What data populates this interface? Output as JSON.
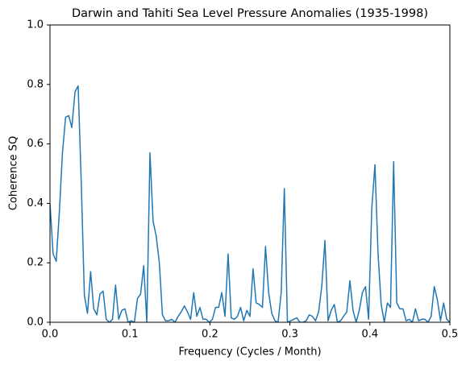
{
  "chart_data": {
    "type": "line",
    "title": "Darwin and Tahiti Sea Level Pressure Anomalies (1935-1998)",
    "x_label": "Frequency (Cycles / Month)",
    "y_label": "Coherence SQ",
    "color": "#1f77b4",
    "x": [
      0,
      0.0039,
      0.0078,
      0.0117,
      0.0156,
      0.0195,
      0.0234,
      0.0273,
      0.0313,
      0.0352,
      0.0391,
      0.043,
      0.0469,
      0.0508,
      0.0547,
      0.0586,
      0.0625,
      0.0664,
      0.0703,
      0.0742,
      0.0781,
      0.082,
      0.0859,
      0.0898,
      0.0938,
      0.0977,
      0.1016,
      0.1055,
      0.1094,
      0.1133,
      0.1172,
      0.1211,
      0.125,
      0.1289,
      0.1328,
      0.1367,
      0.1406,
      0.1445,
      0.1484,
      0.1523,
      0.1563,
      0.1602,
      0.1641,
      0.168,
      0.1719,
      0.1758,
      0.1797,
      0.1836,
      0.1875,
      0.1914,
      0.1953,
      0.1992,
      0.2031,
      0.207,
      0.2109,
      0.2148,
      0.2188,
      0.2227,
      0.2266,
      0.2305,
      0.2344,
      0.2383,
      0.2422,
      0.2461,
      0.25,
      0.2539,
      0.2578,
      0.2617,
      0.2656,
      0.2695,
      0.2734,
      0.2773,
      0.2813,
      0.2852,
      0.2891,
      0.293,
      0.2969,
      0.3008,
      0.3047,
      0.3086,
      0.3125,
      0.3164,
      0.3203,
      0.3242,
      0.3281,
      0.332,
      0.3359,
      0.3398,
      0.3438,
      0.3477,
      0.3516,
      0.3555,
      0.3594,
      0.3633,
      0.3672,
      0.3711,
      0.375,
      0.3789,
      0.3828,
      0.3867,
      0.3906,
      0.3945,
      0.3984,
      0.4023,
      0.4063,
      0.4102,
      0.4141,
      0.418,
      0.4219,
      0.4258,
      0.4297,
      0.4336,
      0.4375,
      0.4414,
      0.4453,
      0.4492,
      0.4531,
      0.457,
      0.4609,
      0.4648,
      0.4688,
      0.4727,
      0.4766,
      0.4805,
      0.4844,
      0.4883,
      0.4922,
      0.4961,
      0.5
    ],
    "values": [
      0.4,
      0.23,
      0.205,
      0.37,
      0.57,
      0.69,
      0.695,
      0.655,
      0.775,
      0.795,
      0.47,
      0.09,
      0.03,
      0.17,
      0.045,
      0.025,
      0.095,
      0.105,
      0.01,
      0.0,
      0.01,
      0.125,
      0.01,
      0.04,
      0.045,
      0.0,
      0.005,
      0.0,
      0.08,
      0.095,
      0.19,
      0.0,
      0.57,
      0.34,
      0.29,
      0.2,
      0.025,
      0.005,
      0.005,
      0.01,
      0.0,
      0.02,
      0.035,
      0.055,
      0.035,
      0.01,
      0.1,
      0.02,
      0.05,
      0.01,
      0.01,
      0.0,
      0.01,
      0.05,
      0.05,
      0.1,
      0.02,
      0.23,
      0.015,
      0.01,
      0.02,
      0.05,
      0.005,
      0.04,
      0.02,
      0.18,
      0.065,
      0.06,
      0.05,
      0.255,
      0.1,
      0.03,
      0.005,
      0.0,
      0.1,
      0.45,
      0.0,
      0.005,
      0.01,
      0.015,
      0.0,
      0.0,
      0.005,
      0.025,
      0.02,
      0.005,
      0.035,
      0.12,
      0.275,
      0.005,
      0.04,
      0.06,
      0.0,
      0.005,
      0.02,
      0.035,
      0.14,
      0.04,
      0.0,
      0.04,
      0.1,
      0.12,
      0.01,
      0.38,
      0.53,
      0.23,
      0.06,
      0.0,
      0.065,
      0.05,
      0.54,
      0.065,
      0.045,
      0.045,
      0.005,
      0.01,
      0.0,
      0.045,
      0.005,
      0.01,
      0.01,
      0.0,
      0.02,
      0.12,
      0.075,
      0.005,
      0.065,
      0.01,
      0.0
    ],
    "xlim": [
      0,
      0.5
    ],
    "ylim": [
      0,
      1
    ],
    "xticks": [
      {
        "value": 0,
        "label": "0.0"
      },
      0.1,
      0.2,
      0.3,
      0.4,
      0.5
    ],
    "yticks": [
      {
        "value": 0,
        "label": "0.0"
      },
      0.2,
      0.4,
      0.6,
      0.8,
      {
        "value": 1,
        "label": "1.0"
      }
    ],
    "grid": false
  }
}
